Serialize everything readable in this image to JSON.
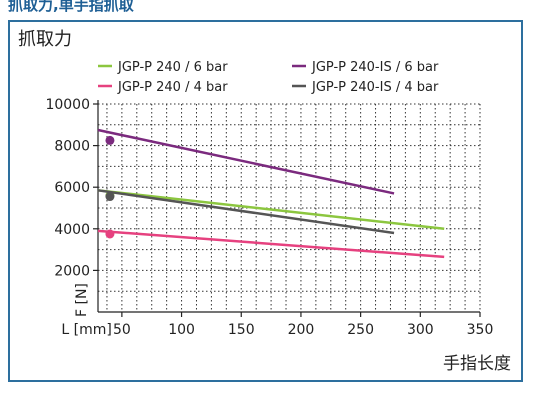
{
  "header": {
    "caption": "抓取力,单手指抓取"
  },
  "chart_data": {
    "type": "line",
    "title": "抓取力",
    "xlabel": "手指长度",
    "ylabel": "F [N]",
    "x_unit_label": "L [mm]",
    "xlim": [
      30,
      350
    ],
    "ylim": [
      0,
      10000
    ],
    "x_ticks": [
      50,
      100,
      150,
      200,
      250,
      300,
      350
    ],
    "y_ticks": [
      2000,
      4000,
      6000,
      8000,
      10000
    ],
    "grid": true,
    "legend_position": "top",
    "series": [
      {
        "name": "JGP-P 240 / 6 bar",
        "color": "#8cc63f",
        "x": [
          30,
          320
        ],
        "y": [
          5850,
          4000
        ],
        "marker_x": 40,
        "marker_y": 5600
      },
      {
        "name": "JGP-P 240-IS / 6 bar",
        "color": "#7b2a7e",
        "x": [
          30,
          278
        ],
        "y": [
          8750,
          5700
        ],
        "marker_x": 40,
        "marker_y": 8250
      },
      {
        "name": "JGP-P 240 / 4 bar",
        "color": "#e6417f",
        "x": [
          30,
          320
        ],
        "y": [
          3900,
          2650
        ],
        "marker_x": 40,
        "marker_y": 3750
      },
      {
        "name": "JGP-P 240-IS / 4 bar",
        "color": "#555555",
        "x": [
          30,
          278
        ],
        "y": [
          5850,
          3800
        ],
        "marker_x": 40,
        "marker_y": 5550
      }
    ]
  }
}
